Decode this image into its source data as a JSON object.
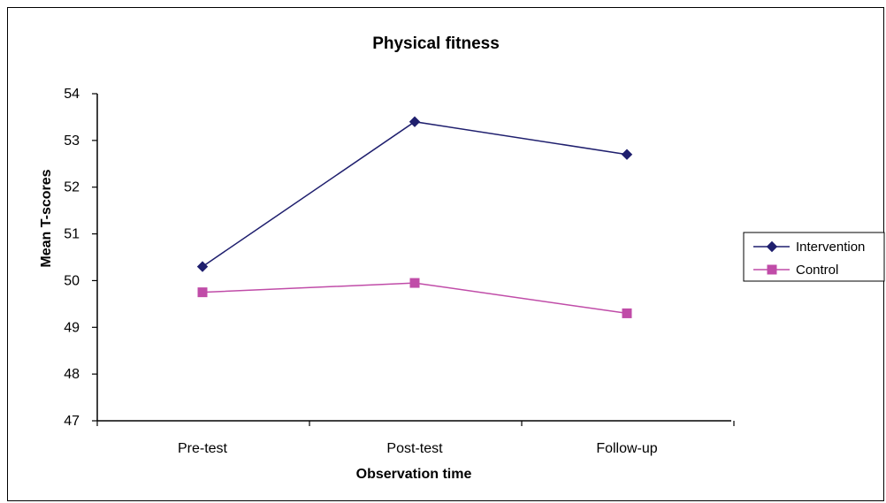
{
  "chart_data": {
    "type": "line",
    "title": "Physical fitness",
    "xlabel": "Observation time",
    "ylabel": "Mean T-scores",
    "categories": [
      "Pre-test",
      "Post-test",
      "Follow-up"
    ],
    "ylim": [
      47,
      54
    ],
    "yticks": [
      "47",
      "48",
      "49",
      "50",
      "51",
      "52",
      "53",
      "54"
    ],
    "grid": false,
    "legend_position": "right",
    "series": [
      {
        "name": "Intervention",
        "values": [
          50.3,
          53.4,
          52.7
        ],
        "color": "#1f1f6e",
        "marker": "diamond"
      },
      {
        "name": "Control",
        "values": [
          49.75,
          49.95,
          49.3
        ],
        "color": "#c04ca8",
        "marker": "square"
      }
    ]
  }
}
